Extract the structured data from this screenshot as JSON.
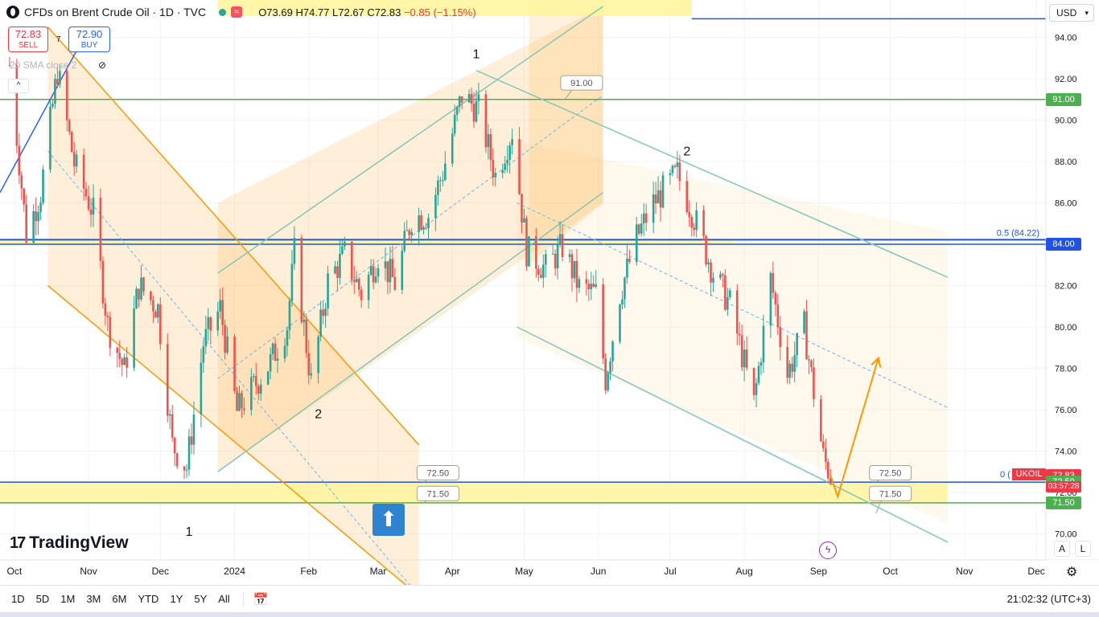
{
  "header": {
    "title": "CFDs on Brent Crude Oil · 1D · TVC",
    "wave_icon": "≈",
    "o": "O73.69",
    "h": "H74.77",
    "l": "L72.67",
    "c": "C72.83",
    "chg": "−0.85 (−1.15%)"
  },
  "trade": {
    "sell_price": "72.83",
    "sell_label": "SELL",
    "buy_price": "72.90",
    "buy_label": "BUY",
    "spread": "7"
  },
  "indicator": {
    "label": "20 SMA close 2"
  },
  "currency": "USD",
  "brand": "TradingView",
  "symbol_tag": "UKOIL",
  "fib_label_top": "0.5 (84.22)",
  "fib_label_bottom": "0 (",
  "wave_labels": [
    "1",
    "2",
    "1",
    "2"
  ],
  "callouts": [
    "91.00",
    "72.50",
    "71.50",
    "72.50",
    "71.50"
  ],
  "countdown": "03:57:28",
  "price_tags": [
    {
      "value": "91.00",
      "color": "#4caf50"
    },
    {
      "value": "84.00",
      "color": "#1e53e5"
    },
    {
      "value": "72.83",
      "color": "#f23645"
    },
    {
      "value": "72.50",
      "color": "#4caf50"
    },
    {
      "value": "71.50",
      "color": "#4caf50"
    }
  ],
  "bottom": {
    "timeframes": [
      "1D",
      "5D",
      "1M",
      "3M",
      "6M",
      "YTD",
      "1Y",
      "5Y",
      "All"
    ],
    "clock": "21:02:32 (UTC+3)"
  },
  "buttons": {
    "auto": "A",
    "log": "L"
  },
  "chart_data": {
    "type": "candlestick",
    "title": "CFDs on Brent Crude Oil · 1D · TVC",
    "ylabel": "USD",
    "ylim": [
      69,
      95.5
    ],
    "y_ticks": [
      70,
      72,
      74,
      76,
      78,
      80,
      82,
      84,
      86,
      88,
      90,
      92,
      94
    ],
    "x_ticks": [
      "Oct",
      "Nov",
      "Dec",
      "2024",
      "Feb",
      "Mar",
      "Apr",
      "May",
      "Jun",
      "Jul",
      "Aug",
      "Sep",
      "Oct",
      "Nov",
      "Dec"
    ],
    "x_tick_dates": [
      "2023-10-01",
      "2023-11-01",
      "2023-12-01",
      "2024-01-01",
      "2024-02-01",
      "2024-03-01",
      "2024-04-01",
      "2024-05-01",
      "2024-06-01",
      "2024-07-01",
      "2024-08-01",
      "2024-09-01",
      "2024-10-01",
      "2024-11-01",
      "2024-12-01"
    ],
    "x_range": [
      "2023-09-25",
      "2024-12-05"
    ],
    "close_path": [
      [
        "2023-09-27",
        95
      ],
      [
        "2023-10-06",
        84.5
      ],
      [
        "2023-10-12",
        86.5
      ],
      [
        "2023-10-19",
        92.4
      ],
      [
        "2023-10-26",
        87.9
      ],
      [
        "2023-11-03",
        85.5
      ],
      [
        "2023-11-09",
        80.1
      ],
      [
        "2023-11-16",
        77.9
      ],
      [
        "2023-11-22",
        82.0
      ],
      [
        "2023-11-30",
        80.9
      ],
      [
        "2023-12-06",
        74.3
      ],
      [
        "2023-12-12",
        73.2
      ],
      [
        "2023-12-19",
        79.2
      ],
      [
        "2023-12-26",
        80.9
      ],
      [
        "2024-01-02",
        75.9
      ],
      [
        "2024-01-09",
        77.1
      ],
      [
        "2024-01-16",
        78.3
      ],
      [
        "2024-01-23",
        80.1
      ],
      [
        "2024-01-26",
        83.6
      ],
      [
        "2024-02-02",
        77.3
      ],
      [
        "2024-02-09",
        82.2
      ],
      [
        "2024-02-16",
        83.5
      ],
      [
        "2024-02-23",
        81.6
      ],
      [
        "2024-03-01",
        83.5
      ],
      [
        "2024-03-08",
        82.1
      ],
      [
        "2024-03-15",
        85.3
      ],
      [
        "2024-03-22",
        85.4
      ],
      [
        "2024-03-28",
        87.5
      ],
      [
        "2024-04-05",
        91.2
      ],
      [
        "2024-04-12",
        90.5
      ],
      [
        "2024-04-19",
        87.3
      ],
      [
        "2024-04-26",
        89.5
      ],
      [
        "2024-05-02",
        83.7
      ],
      [
        "2024-05-10",
        82.8
      ],
      [
        "2024-05-17",
        83.9
      ],
      [
        "2024-05-24",
        81.9
      ],
      [
        "2024-05-31",
        81.6
      ],
      [
        "2024-06-04",
        77.5
      ],
      [
        "2024-06-10",
        81.6
      ],
      [
        "2024-06-17",
        84.3
      ],
      [
        "2024-06-24",
        86.0
      ],
      [
        "2024-07-04",
        87.4
      ],
      [
        "2024-07-12",
        85.0
      ],
      [
        "2024-07-19",
        82.6
      ],
      [
        "2024-07-26",
        81.1
      ],
      [
        "2024-08-05",
        76.3
      ],
      [
        "2024-08-12",
        82.3
      ],
      [
        "2024-08-19",
        77.7
      ],
      [
        "2024-08-26",
        80.0
      ],
      [
        "2024-09-03",
        73.7
      ],
      [
        "2024-09-06",
        72.83
      ]
    ],
    "horizontal_levels": [
      {
        "price": 91.0,
        "color": "#4caf50"
      },
      {
        "price": 84.0,
        "color": "#1e53e5"
      },
      {
        "price": 84.22,
        "color": "#1e53e5"
      },
      {
        "price": 72.5,
        "color": "#1e53e5"
      },
      {
        "price": 71.5,
        "color": "#4caf50"
      },
      {
        "price": 94.9,
        "color": "#1e53e5"
      }
    ],
    "zones": [
      {
        "from": 71.5,
        "to": 72.5,
        "color": "#fff59d"
      }
    ],
    "projection": [
      [
        "2024-09-06",
        72.83
      ],
      [
        "2024-09-09",
        71.8
      ],
      [
        "2024-09-26",
        78.5
      ]
    ]
  }
}
